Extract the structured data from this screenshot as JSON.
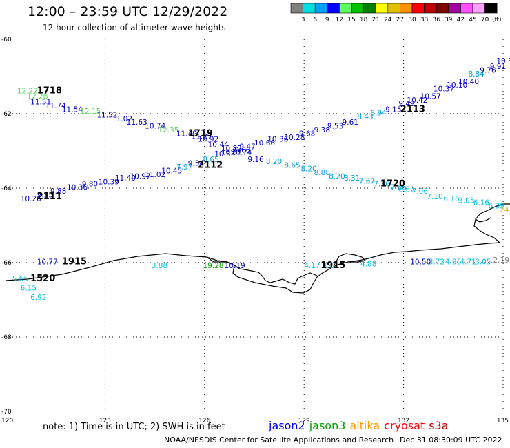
{
  "title": "12:00 – 23:59 UTC 12/29/2022",
  "subtitle": "12 hour collection of altimeter wave heights",
  "note": "note:  1) Time is in UTC;  2) SWH is in feet",
  "credit": "NOAA/NESDIS Center for Satellite Applications and Research",
  "timestamp": "Dec 31 08:30:09 UTC 2022",
  "scale": {
    "unit": "(ft)",
    "colors": [
      "#808080",
      "#00e0e0",
      "#00a0ff",
      "#0000ff",
      "#60ff60",
      "#00c000",
      "#008000",
      "#ffff00",
      "#e0c000",
      "#ff9000",
      "#ff0000",
      "#c00000",
      "#800000",
      "#a000a0",
      "#ff50ff",
      "#ffa0ff",
      "#000000"
    ],
    "labels": [
      "3",
      "6",
      "9",
      "12",
      "15",
      "18",
      "21",
      "24",
      "27",
      "30",
      "33",
      "36",
      "39",
      "42",
      "45",
      "70"
    ]
  },
  "satellites": [
    {
      "name": "jason2",
      "color": "#0000ff"
    },
    {
      "name": "jason3",
      "color": "#00a000"
    },
    {
      "name": "altika",
      "color": "#ff9900"
    },
    {
      "name": "cryosat",
      "color": "#ff0000"
    },
    {
      "name": "s3a",
      "color": "#c00000"
    }
  ],
  "axes": {
    "lon_ticks": [
      "120",
      "123",
      "126",
      "129",
      "132",
      "135"
    ],
    "lat_ticks": [
      "-60",
      "-62",
      "-64",
      "-66",
      "-68",
      "-70"
    ],
    "lon_range": [
      120,
      135
    ],
    "lat_range": [
      -60,
      -70
    ]
  },
  "time_labels": [
    {
      "text": "1718",
      "lon": 120.95,
      "lat": -61.45,
      "color": "#008000"
    },
    {
      "text": "1719",
      "lon": 125.5,
      "lat": -62.6,
      "color": "#008000"
    },
    {
      "text": "2112",
      "lon": 125.8,
      "lat": -63.45,
      "color": "#008000"
    },
    {
      "text": "2113",
      "lon": 131.9,
      "lat": -61.95,
      "color": "#008000"
    },
    {
      "text": "2111",
      "lon": 120.95,
      "lat": -64.3,
      "color": "#008000"
    },
    {
      "text": "1720",
      "lon": 131.3,
      "lat": -63.95,
      "color": "#008000"
    },
    {
      "text": "1915",
      "lon": 121.7,
      "lat": -66.05,
      "color": "#008000"
    },
    {
      "text": "1915",
      "lon": 129.5,
      "lat": -66.15,
      "color": "#008000"
    },
    {
      "text": "1520",
      "lon": 120.75,
      "lat": -66.5,
      "color": "#800000"
    }
  ],
  "swh_labels": [
    {
      "v": "12.22",
      "lon": 120.35,
      "lat": -61.45,
      "c": "#60d060"
    },
    {
      "v": "12.28",
      "lon": 120.65,
      "lat": -61.6,
      "c": "#60d060"
    },
    {
      "v": "11.51",
      "lon": 120.75,
      "lat": -61.75,
      "c": "#0000c0"
    },
    {
      "v": "11.74",
      "lon": 121.2,
      "lat": -61.85,
      "c": "#0000c0"
    },
    {
      "v": "11.54",
      "lon": 121.7,
      "lat": -61.95,
      "c": "#0000c0"
    },
    {
      "v": "12.15",
      "lon": 122.25,
      "lat": -62.0,
      "c": "#60d060"
    },
    {
      "v": "11.52",
      "lon": 122.75,
      "lat": -62.1,
      "c": "#0000c0"
    },
    {
      "v": "11.02",
      "lon": 123.2,
      "lat": -62.2,
      "c": "#0000c0"
    },
    {
      "v": "11.63",
      "lon": 123.65,
      "lat": -62.3,
      "c": "#0000c0"
    },
    {
      "v": "10.74",
      "lon": 124.2,
      "lat": -62.4,
      "c": "#0000c0"
    },
    {
      "v": "12.35",
      "lon": 124.6,
      "lat": -62.5,
      "c": "#60d060"
    },
    {
      "v": "11.49",
      "lon": 125.15,
      "lat": -62.6,
      "c": "#0000c0"
    },
    {
      "v": "11.27",
      "lon": 125.6,
      "lat": -62.68,
      "c": "#0000c0"
    },
    {
      "v": "10.92",
      "lon": 125.8,
      "lat": -62.75,
      "c": "#0000c0"
    },
    {
      "v": "10.44",
      "lon": 126.1,
      "lat": -62.9,
      "c": "#0000c0"
    },
    {
      "v": "10.82",
      "lon": 126.5,
      "lat": -63.0,
      "c": "#0000c0"
    },
    {
      "v": "10.33",
      "lon": 126.3,
      "lat": -63.15,
      "c": "#0000c0"
    },
    {
      "v": "10.74",
      "lon": 126.8,
      "lat": -63.1,
      "c": "#0000c0"
    },
    {
      "v": "9.66",
      "lon": 126.9,
      "lat": -63.05,
      "c": "#0000c0"
    },
    {
      "v": "9.16",
      "lon": 127.3,
      "lat": -63.3,
      "c": "#0000c0"
    },
    {
      "v": "8.20",
      "lon": 127.85,
      "lat": -63.35,
      "c": "#00a0e0"
    },
    {
      "v": "8.65",
      "lon": 128.4,
      "lat": -63.45,
      "c": "#00a0e0"
    },
    {
      "v": "8.20",
      "lon": 128.9,
      "lat": -63.55,
      "c": "#00a0e0"
    },
    {
      "v": "8.88",
      "lon": 129.3,
      "lat": -63.65,
      "c": "#00a0e0"
    },
    {
      "v": "8.20",
      "lon": 129.75,
      "lat": -63.75,
      "c": "#00a0e0"
    },
    {
      "v": "8.31",
      "lon": 130.2,
      "lat": -63.8,
      "c": "#00a0e0"
    },
    {
      "v": "7.67",
      "lon": 130.65,
      "lat": -63.88,
      "c": "#00a0e0"
    },
    {
      "v": "7.36",
      "lon": 131.1,
      "lat": -63.95,
      "c": "#00a0e0"
    },
    {
      "v": "7.66",
      "lon": 131.6,
      "lat": -64.05,
      "c": "#00a0e0"
    },
    {
      "v": "6.62",
      "lon": 131.85,
      "lat": -64.1,
      "c": "#00c0e0"
    },
    {
      "v": "7.06",
      "lon": 132.25,
      "lat": -64.15,
      "c": "#00c0e0"
    },
    {
      "v": "7.10",
      "lon": 132.7,
      "lat": -64.3,
      "c": "#00c0e0"
    },
    {
      "v": "6.16",
      "lon": 133.2,
      "lat": -64.35,
      "c": "#00c0e0"
    },
    {
      "v": "3.05",
      "lon": 133.65,
      "lat": -64.4,
      "c": "#00c0e0"
    },
    {
      "v": "6.16",
      "lon": 134.1,
      "lat": -64.45,
      "c": "#00c0e0"
    },
    {
      "v": "6.39",
      "lon": 134.55,
      "lat": -64.55,
      "c": "#00c0e0"
    },
    {
      "v": "24.52",
      "lon": 134.9,
      "lat": -64.65,
      "c": "#e0c000"
    },
    {
      "v": "10.26",
      "lon": 120.45,
      "lat": -64.35,
      "c": "#0000c0"
    },
    {
      "v": "9.35",
      "lon": 120.95,
      "lat": -64.25,
      "c": "#0000c0"
    },
    {
      "v": "9.88",
      "lon": 121.35,
      "lat": -64.15,
      "c": "#0000c0"
    },
    {
      "v": "10.36",
      "lon": 121.85,
      "lat": -64.05,
      "c": "#0000c0"
    },
    {
      "v": "9.80",
      "lon": 122.3,
      "lat": -63.95,
      "c": "#0000c0"
    },
    {
      "v": "10.39",
      "lon": 122.8,
      "lat": -63.9,
      "c": "#0000c0"
    },
    {
      "v": "11.40",
      "lon": 123.3,
      "lat": -63.8,
      "c": "#0000c0"
    },
    {
      "v": "10.97",
      "lon": 123.75,
      "lat": -63.75,
      "c": "#0000c0"
    },
    {
      "v": "11.02",
      "lon": 124.2,
      "lat": -63.7,
      "c": "#0000c0"
    },
    {
      "v": "10.45",
      "lon": 124.7,
      "lat": -63.6,
      "c": "#0000c0"
    },
    {
      "v": "7.97",
      "lon": 125.15,
      "lat": -63.5,
      "c": "#00a0e0"
    },
    {
      "v": "9.54",
      "lon": 125.5,
      "lat": -63.4,
      "c": "#0000c0"
    },
    {
      "v": "8.65",
      "lon": 125.95,
      "lat": -63.3,
      "c": "#00a0e0"
    },
    {
      "v": "10.55",
      "lon": 126.5,
      "lat": -63.1,
      "c": "#0000c0"
    },
    {
      "v": "9.47",
      "lon": 127.05,
      "lat": -62.95,
      "c": "#0000c0"
    },
    {
      "v": "10.66",
      "lon": 127.5,
      "lat": -62.85,
      "c": "#0000c0"
    },
    {
      "v": "10.36",
      "lon": 127.9,
      "lat": -62.75,
      "c": "#0000c0"
    },
    {
      "v": "10.28",
      "lon": 128.4,
      "lat": -62.7,
      "c": "#0000c0"
    },
    {
      "v": "9.68",
      "lon": 128.85,
      "lat": -62.6,
      "c": "#0000c0"
    },
    {
      "v": "9.38",
      "lon": 129.3,
      "lat": -62.5,
      "c": "#0000c0"
    },
    {
      "v": "9.53",
      "lon": 129.7,
      "lat": -62.4,
      "c": "#0000c0"
    },
    {
      "v": "9.61",
      "lon": 130.15,
      "lat": -62.3,
      "c": "#0000c0"
    },
    {
      "v": "8.43",
      "lon": 130.6,
      "lat": -62.15,
      "c": "#00a0e0"
    },
    {
      "v": "8.94",
      "lon": 131.0,
      "lat": -62.05,
      "c": "#00a0e0"
    },
    {
      "v": "9.15",
      "lon": 131.45,
      "lat": -61.95,
      "c": "#0000c0"
    },
    {
      "v": "9.49",
      "lon": 131.85,
      "lat": -61.8,
      "c": "#0000c0"
    },
    {
      "v": "10.42",
      "lon": 132.1,
      "lat": -61.7,
      "c": "#0000c0"
    },
    {
      "v": "10.57",
      "lon": 132.5,
      "lat": -61.6,
      "c": "#0000c0"
    },
    {
      "v": "10.37",
      "lon": 132.9,
      "lat": -61.4,
      "c": "#0000c0"
    },
    {
      "v": "10.10",
      "lon": 133.3,
      "lat": -61.3,
      "c": "#0000c0"
    },
    {
      "v": "10.40",
      "lon": 133.65,
      "lat": -61.2,
      "c": "#0000c0"
    },
    {
      "v": "8.84",
      "lon": 133.95,
      "lat": -61.0,
      "c": "#00a0e0"
    },
    {
      "v": "9.76",
      "lon": 134.3,
      "lat": -60.9,
      "c": "#0000c0"
    },
    {
      "v": "9.91",
      "lon": 134.6,
      "lat": -60.8,
      "c": "#0000c0"
    },
    {
      "v": "10.31",
      "lon": 134.8,
      "lat": -60.65,
      "c": "#0000c0"
    },
    {
      "v": "10.77",
      "lon": 120.95,
      "lat": -66.05,
      "c": "#0000c0"
    },
    {
      "v": "5.65",
      "lon": 120.2,
      "lat": -66.5,
      "c": "#00c0e0"
    },
    {
      "v": "6.15",
      "lon": 120.45,
      "lat": -66.75,
      "c": "#00c0e0"
    },
    {
      "v": "6.92",
      "lon": 120.75,
      "lat": -67.0,
      "c": "#00c0e0"
    },
    {
      "v": "3.88",
      "lon": 124.4,
      "lat": -66.15,
      "c": "#00c0e0"
    },
    {
      "v": "19.28",
      "lon": 125.95,
      "lat": -66.15,
      "c": "#00a000"
    },
    {
      "v": "10.19",
      "lon": 126.6,
      "lat": -66.15,
      "c": "#0000c0"
    },
    {
      "v": "4.17",
      "lon": 129.0,
      "lat": -66.15,
      "c": "#00c0e0"
    },
    {
      "v": "3.12",
      "lon": 129.55,
      "lat": -66.15,
      "c": "#00c0e0"
    },
    {
      "v": "4.88",
      "lon": 130.7,
      "lat": -66.1,
      "c": "#00c0e0"
    },
    {
      "v": "10.50",
      "lon": 132.2,
      "lat": -66.05,
      "c": "#0000c0"
    },
    {
      "v": "3.72",
      "lon": 132.75,
      "lat": -66.05,
      "c": "#00c0e0"
    },
    {
      "v": "4.86",
      "lon": 133.25,
      "lat": -66.05,
      "c": "#00c0e0"
    },
    {
      "v": "4.71",
      "lon": 133.7,
      "lat": -66.05,
      "c": "#00c0e0"
    },
    {
      "v": "3.05",
      "lon": 134.15,
      "lat": -66.05,
      "c": "#00c0e0"
    },
    {
      "v": "2.19",
      "lon": 134.7,
      "lat": -66.0,
      "c": "#808080"
    }
  ]
}
